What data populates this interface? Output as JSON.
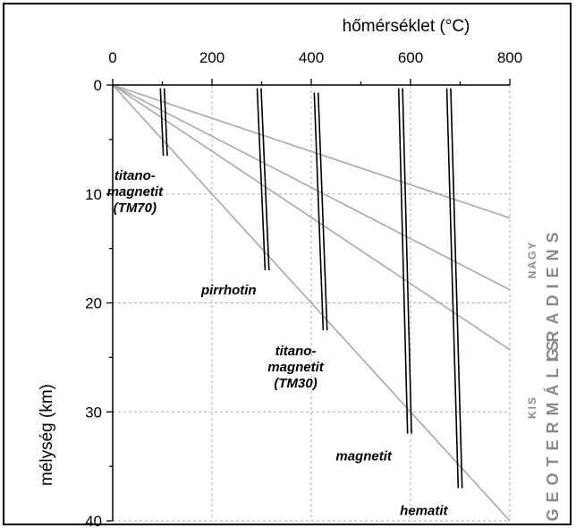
{
  "chart_data": {
    "type": "line",
    "xlabel": "hőmérséklet (°C)",
    "ylabel": "mélység (km)",
    "xlim": [
      0,
      800
    ],
    "ylim": [
      0,
      40
    ],
    "y_inverted": true,
    "x_axis_position": "top",
    "xticks": [
      0,
      200,
      400,
      600,
      800
    ],
    "yticks": [
      0,
      10,
      20,
      30,
      40
    ],
    "grid": true,
    "geotherms": [
      {
        "x": [
          0,
          800
        ],
        "y": [
          0,
          12.2
        ]
      },
      {
        "x": [
          0,
          800
        ],
        "y": [
          0,
          18.8
        ]
      },
      {
        "x": [
          0,
          800
        ],
        "y": [
          0,
          24.3
        ]
      },
      {
        "x": [
          0,
          800
        ],
        "y": [
          0,
          40
        ]
      }
    ],
    "minerals": [
      {
        "name_lines": [
          "titano-",
          "magnetit",
          "(TM70)"
        ],
        "x_top": 100,
        "x_bottom": 106,
        "y_top": 0.3,
        "y_bottom": 6.5
      },
      {
        "name_lines": [
          "pirrhotin"
        ],
        "x_top": 295,
        "x_bottom": 311,
        "y_top": 0.3,
        "y_bottom": 17.0
      },
      {
        "name_lines": [
          "titano-",
          "magnetit",
          "(TM30)"
        ],
        "x_top": 410,
        "x_bottom": 428,
        "y_top": 0.7,
        "y_bottom": 22.5
      },
      {
        "name_lines": [
          "magnetit"
        ],
        "x_top": 580,
        "x_bottom": 598,
        "y_top": 0.3,
        "y_bottom": 32.0
      },
      {
        "name_lines": [
          "hematit"
        ],
        "x_top": 677,
        "x_bottom": 700,
        "y_top": 0.3,
        "y_bottom": 37.0
      }
    ],
    "side_labels": {
      "main_top": "GRADIENS",
      "main_bottom": "GEOTERMÁLIS",
      "high": "NAGY",
      "low": "KIS"
    }
  }
}
